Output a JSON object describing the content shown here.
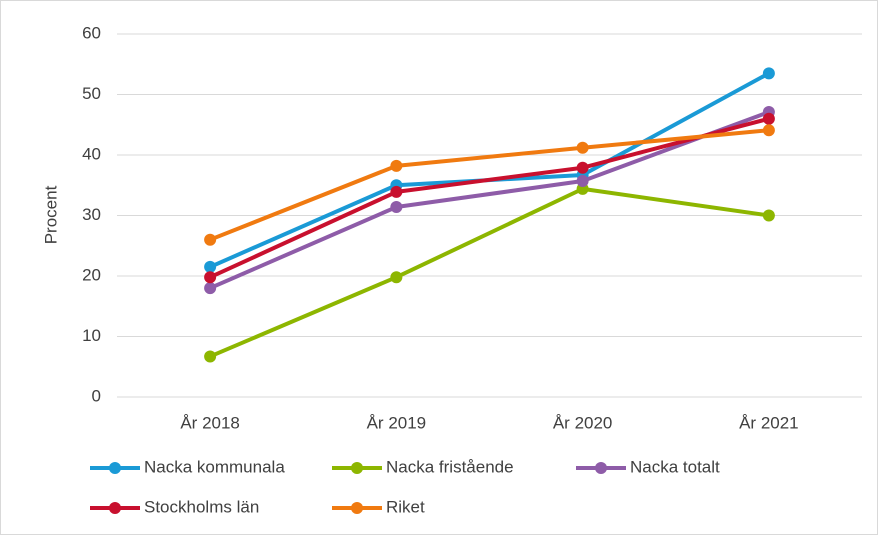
{
  "chart_data": {
    "type": "line",
    "y_label": "Procent",
    "categories": [
      "År 2018",
      "År 2019",
      "År 2020",
      "År 2021"
    ],
    "series": [
      {
        "name": "Nacka kommunala",
        "color": "#1a9ad6",
        "values": [
          21.5,
          35,
          36.7,
          53.5
        ]
      },
      {
        "name": "Nacka fristående",
        "color": "#8db600",
        "values": [
          6.7,
          19.8,
          34.4,
          30
        ]
      },
      {
        "name": "Nacka totalt",
        "color": "#8e5ca8",
        "values": [
          18,
          31.4,
          35.7,
          47.1
        ]
      },
      {
        "name": "Stockholms län",
        "color": "#c8102e",
        "values": [
          19.8,
          33.9,
          37.9,
          46
        ]
      },
      {
        "name": "Riket",
        "color": "#f07a10",
        "values": [
          26,
          38.2,
          41.2,
          44.1
        ]
      }
    ],
    "ylim": [
      0,
      60
    ],
    "yticks": [
      0,
      10,
      20,
      30,
      40,
      50,
      60
    ],
    "grid": true,
    "legend": "bottom"
  }
}
